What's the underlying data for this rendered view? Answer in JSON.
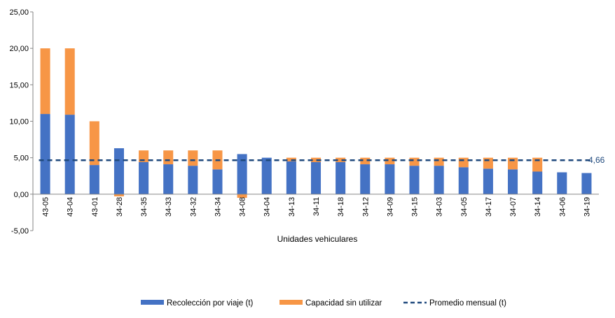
{
  "chart_data": {
    "type": "bar",
    "stacked": true,
    "xlabel": "Unidades vehiculares",
    "ylabel": "",
    "ylim": [
      -5,
      25
    ],
    "yticks": [
      "-5,00",
      "0,00",
      "5,00",
      "10,00",
      "15,00",
      "20,00",
      "25,00"
    ],
    "grid": false,
    "legend_position": "bottom",
    "categories": [
      "43-05",
      "43-04",
      "43-01",
      "34-28",
      "34-35",
      "34-33",
      "34-32",
      "34-34",
      "34-08",
      "34-04",
      "34-13",
      "34-11",
      "34-18",
      "34-12",
      "34-09",
      "34-15",
      "34-03",
      "34-05",
      "34-17",
      "34-07",
      "34-14",
      "34-06",
      "34-19"
    ],
    "series": [
      {
        "name": "Recolección por viaje (t)",
        "color": "#4472C4",
        "values": [
          11.0,
          10.9,
          4.0,
          6.3,
          4.4,
          4.1,
          3.9,
          3.4,
          5.5,
          5.0,
          4.5,
          4.4,
          4.4,
          4.1,
          4.1,
          3.9,
          3.9,
          3.7,
          3.5,
          3.4,
          3.1,
          3.0,
          2.9
        ]
      },
      {
        "name": "Capacidad sin utilizar",
        "color": "#F79646",
        "values": [
          9.0,
          9.1,
          6.0,
          -0.3,
          1.6,
          1.9,
          2.1,
          2.6,
          -0.5,
          0.0,
          0.5,
          0.6,
          0.6,
          0.9,
          0.9,
          1.1,
          1.1,
          1.3,
          1.5,
          1.6,
          1.9,
          0.0,
          0.0
        ]
      }
    ],
    "average": {
      "name": "Promedio mensual (t)",
      "value": 4.66,
      "label": "4,66",
      "color": "#1F497D"
    }
  }
}
